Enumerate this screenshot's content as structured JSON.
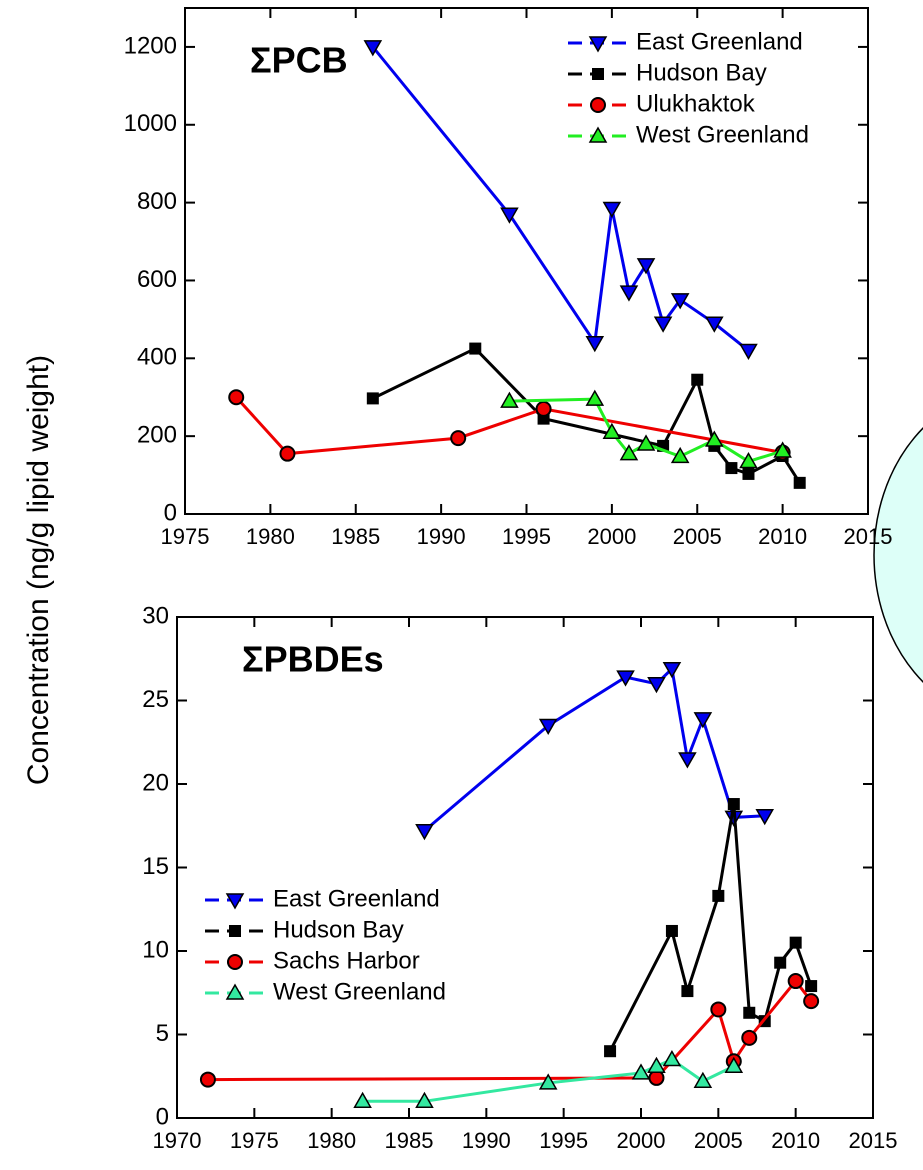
{
  "ylabel": "Concentration (ng/g lipid weight)",
  "chart_data": [
    {
      "type": "line",
      "title": "ΣPCB",
      "xlim": [
        1975,
        2015
      ],
      "xticks": [
        1975,
        1980,
        1985,
        1990,
        1995,
        2000,
        2005,
        2010,
        2015
      ],
      "ylim": [
        0,
        1300
      ],
      "yticks": [
        0,
        200,
        400,
        600,
        800,
        1000,
        1200
      ],
      "legend": "top-right",
      "series": [
        {
          "name": "East Greenland",
          "color": "#0000ee",
          "marker": "triangle-down",
          "x": [
            1986,
            1994,
            1999,
            2000,
            2001,
            2002,
            2003,
            2004,
            2006,
            2008
          ],
          "values": [
            1200,
            770,
            440,
            785,
            570,
            640,
            490,
            550,
            490,
            420
          ]
        },
        {
          "name": "Hudson Bay",
          "color": "#000000",
          "marker": "square",
          "x": [
            1986,
            1992,
            1996,
            2003,
            2005,
            2006,
            2007,
            2008,
            2010,
            2011
          ],
          "values": [
            297,
            425,
            245,
            175,
            345,
            175,
            118,
            103,
            149,
            80
          ]
        },
        {
          "name": "Ulukhaktok",
          "color": "#ee0000",
          "marker": "circle",
          "x": [
            1978,
            1981,
            1991,
            1996,
            2010
          ],
          "values": [
            300,
            155,
            195,
            270,
            158
          ]
        },
        {
          "name": "West Greenland",
          "color": "#22ee22",
          "marker": "triangle-up",
          "x": [
            1994,
            1999,
            2000,
            2001,
            2002,
            2004,
            2006,
            2008,
            2010
          ],
          "values": [
            290,
            295,
            210,
            155,
            180,
            148,
            190,
            135,
            162
          ]
        }
      ]
    },
    {
      "type": "line",
      "title": "ΣPBDEs",
      "xlim": [
        1970,
        2015
      ],
      "xticks": [
        1970,
        1975,
        1980,
        1985,
        1990,
        1995,
        2000,
        2005,
        2010,
        2015
      ],
      "ylim": [
        0,
        30
      ],
      "yticks": [
        0,
        5,
        10,
        15,
        20,
        25,
        30
      ],
      "legend": "bottom-left",
      "series": [
        {
          "name": "East Greenland",
          "color": "#0000ee",
          "marker": "triangle-down",
          "x": [
            1986,
            1994,
            1999,
            2001,
            2002,
            2003,
            2004,
            2006,
            2008
          ],
          "values": [
            17.2,
            23.5,
            26.4,
            26.0,
            26.9,
            21.5,
            23.9,
            18.0,
            18.1
          ]
        },
        {
          "name": "Hudson Bay",
          "color": "#000000",
          "marker": "square",
          "x": [
            1998,
            2002,
            2003,
            2005,
            2006,
            2007,
            2008,
            2009,
            2010,
            2011
          ],
          "values": [
            4.0,
            11.2,
            7.6,
            13.3,
            18.8,
            6.3,
            5.8,
            9.3,
            10.5,
            7.9
          ]
        },
        {
          "name": "Sachs Harbor",
          "color": "#ee0000",
          "marker": "circle",
          "x": [
            1972,
            2001,
            2005,
            2006,
            2007,
            2010,
            2011
          ],
          "values": [
            2.3,
            2.4,
            6.5,
            3.4,
            4.8,
            8.2,
            7.0
          ]
        },
        {
          "name": "West Greenland",
          "color": "#33e8a0",
          "marker": "triangle-up",
          "x": [
            1982,
            1986,
            1994,
            2000,
            2001,
            2002,
            2004,
            2006
          ],
          "values": [
            1.0,
            1.0,
            2.1,
            2.7,
            3.1,
            3.5,
            2.2,
            3.1
          ]
        }
      ]
    }
  ]
}
